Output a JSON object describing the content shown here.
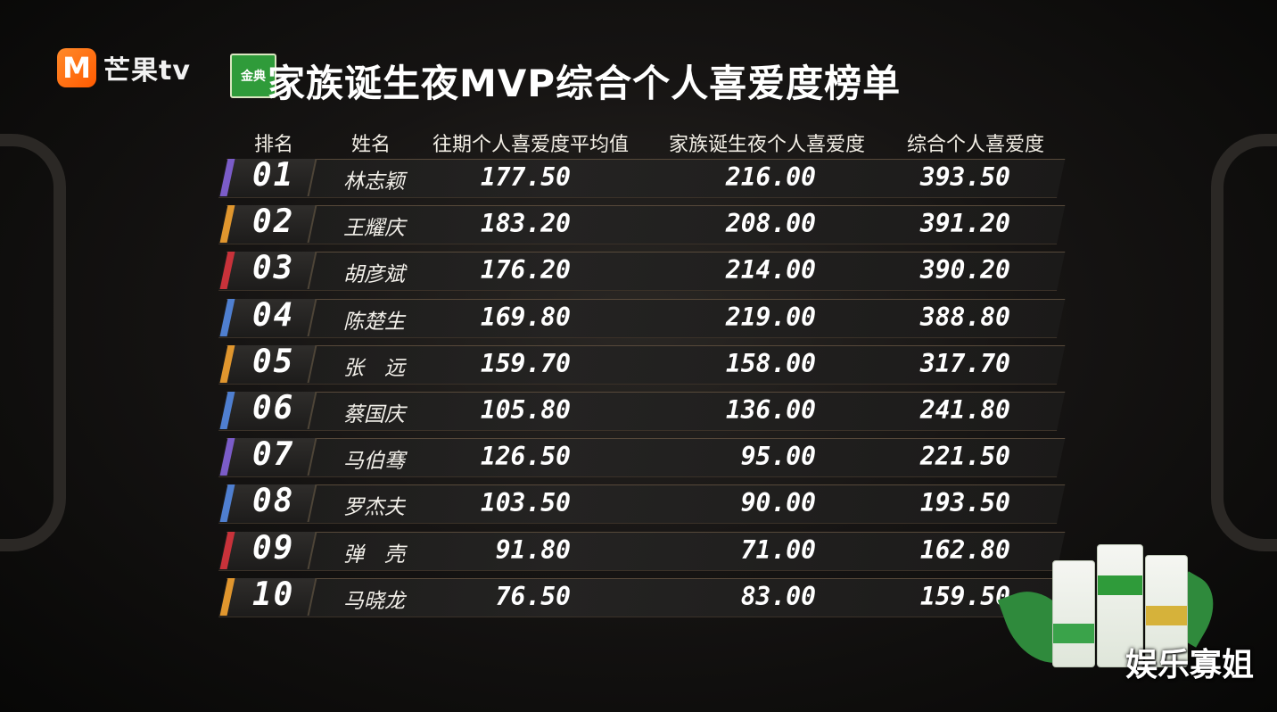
{
  "header": {
    "logo_mark": "M",
    "logo_text": "芒果tv",
    "sponsor_mark": "金典",
    "title": "家族诞生夜MVP综合个人喜爱度榜单"
  },
  "columns": [
    "排名",
    "姓名",
    "往期个人喜爱度平均值",
    "家族诞生夜个人喜爱度",
    "综合个人喜爱度"
  ],
  "rows": [
    {
      "rank": "01",
      "name": "林志颖",
      "prev_avg": "177.50",
      "birth_night": "216.00",
      "total": "393.50",
      "accent": "#7b5cc8"
    },
    {
      "rank": "02",
      "name": "王耀庆",
      "prev_avg": "183.20",
      "birth_night": "208.00",
      "total": "391.20",
      "accent": "#e0962e"
    },
    {
      "rank": "03",
      "name": "胡彦斌",
      "prev_avg": "176.20",
      "birth_night": "214.00",
      "total": "390.20",
      "accent": "#c8323a"
    },
    {
      "rank": "04",
      "name": "陈楚生",
      "prev_avg": "169.80",
      "birth_night": "219.00",
      "total": "388.80",
      "accent": "#4f7fd0"
    },
    {
      "rank": "05",
      "name": "张　远",
      "prev_avg": "159.70",
      "birth_night": "158.00",
      "total": "317.70",
      "accent": "#e0962e"
    },
    {
      "rank": "06",
      "name": "蔡国庆",
      "prev_avg": "105.80",
      "birth_night": "136.00",
      "total": "241.80",
      "accent": "#4f7fd0"
    },
    {
      "rank": "07",
      "name": "马伯骞",
      "prev_avg": "126.50",
      "birth_night": "95.00",
      "total": "221.50",
      "accent": "#7b5cc8"
    },
    {
      "rank": "08",
      "name": "罗杰夫",
      "prev_avg": "103.50",
      "birth_night": "90.00",
      "total": "193.50",
      "accent": "#4f7fd0"
    },
    {
      "rank": "09",
      "name": "弹　壳",
      "prev_avg": "91.80",
      "birth_night": "71.00",
      "total": "162.80",
      "accent": "#c8323a"
    },
    {
      "rank": "10",
      "name": "马晓龙",
      "prev_avg": "76.50",
      "birth_night": "83.00",
      "total": "159.50",
      "accent": "#e0962e"
    }
  ],
  "watermark": "娱乐寡姐"
}
